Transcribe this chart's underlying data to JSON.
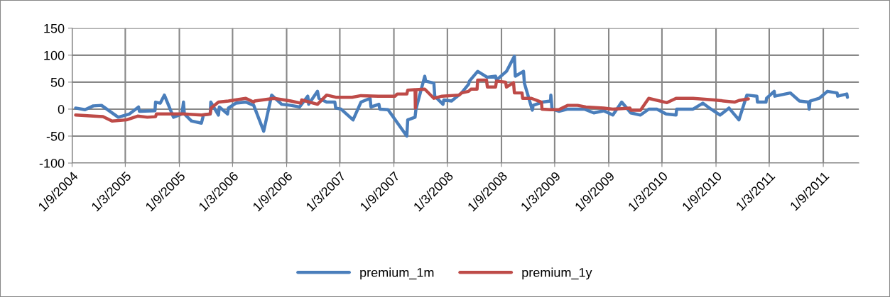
{
  "chart_data": {
    "type": "line",
    "xlim": [
      "2004-09-01",
      "2011-12-31"
    ],
    "xticks": [
      {
        "value": "2004-09-01",
        "label": "1/9/2004"
      },
      {
        "value": "2005-03-01",
        "label": "1/3/2005"
      },
      {
        "value": "2005-09-01",
        "label": "1/9/2005"
      },
      {
        "value": "2006-03-01",
        "label": "1/3/2006"
      },
      {
        "value": "2006-09-01",
        "label": "1/9/2006"
      },
      {
        "value": "2007-03-01",
        "label": "1/3/2007"
      },
      {
        "value": "2007-09-01",
        "label": "1/9/2007"
      },
      {
        "value": "2008-03-01",
        "label": "1/3/2008"
      },
      {
        "value": "2008-09-01",
        "label": "1/9/2008"
      },
      {
        "value": "2009-03-01",
        "label": "1/3/2009"
      },
      {
        "value": "2009-09-01",
        "label": "1/9/2009"
      },
      {
        "value": "2010-03-01",
        "label": "1/3/2010"
      },
      {
        "value": "2010-09-01",
        "label": "1/9/2010"
      },
      {
        "value": "2011-03-01",
        "label": "1/3/2011"
      },
      {
        "value": "2011-09-01",
        "label": "1/9/2011"
      }
    ],
    "ylim": [
      -100,
      150
    ],
    "yticks": [
      -100,
      -50,
      0,
      50,
      100,
      150
    ],
    "grid": true,
    "legend": "bottom",
    "series": [
      {
        "name": "premium_1m",
        "color": "#4a7ebb",
        "x": [
          "2004-09-13",
          "2004-10-15",
          "2004-11-12",
          "2004-12-10",
          "2005-02-05",
          "2005-03-15",
          "2005-04-15",
          "2005-04-18",
          "2005-06-10",
          "2005-06-12",
          "2005-06-28",
          "2005-07-12",
          "2005-08-12",
          "2005-09-10",
          "2005-09-15",
          "2005-09-18",
          "2005-10-12",
          "2005-11-15",
          "2005-11-22",
          "2005-12-15",
          "2005-12-17",
          "2006-01-12",
          "2006-01-15",
          "2006-02-12",
          "2006-02-15",
          "2006-03-12",
          "2006-04-15",
          "2006-05-12",
          "2006-06-15",
          "2006-07-12",
          "2006-08-15",
          "2006-09-15",
          "2006-10-15",
          "2006-11-12",
          "2006-11-15",
          "2006-12-15",
          "2006-12-20",
          "2007-01-15",
          "2007-01-20",
          "2007-02-12",
          "2007-02-15",
          "2007-03-05",
          "2007-04-15",
          "2007-05-12",
          "2007-06-12",
          "2007-06-15",
          "2007-07-12",
          "2007-07-15",
          "2007-08-12",
          "2007-10-15",
          "2007-10-18",
          "2007-11-12",
          "2007-11-15",
          "2007-12-15",
          "2007-12-18",
          "2008-01-15",
          "2008-01-18",
          "2008-02-15",
          "2008-02-18",
          "2008-03-15",
          "2008-04-18",
          "2008-05-12",
          "2008-05-15",
          "2008-06-12",
          "2008-07-15",
          "2008-08-12",
          "2008-08-15",
          "2008-09-18",
          "2008-10-15",
          "2008-10-18",
          "2008-11-15",
          "2008-11-18",
          "2008-12-15",
          "2008-12-18",
          "2009-01-18",
          "2009-02-15",
          "2009-02-16",
          "2009-02-20",
          "2009-03-15",
          "2009-04-15",
          "2009-06-10",
          "2009-07-12",
          "2009-08-15",
          "2009-09-15",
          "2009-10-15",
          "2009-11-15",
          "2009-12-18",
          "2010-01-15",
          "2010-02-12",
          "2010-03-15",
          "2010-04-18",
          "2010-04-20",
          "2010-06-15",
          "2010-07-18",
          "2010-08-15",
          "2010-09-15",
          "2010-10-15",
          "2010-11-18",
          "2010-12-15",
          "2011-01-18",
          "2011-01-20",
          "2011-02-18",
          "2011-02-20",
          "2011-03-18",
          "2011-03-20",
          "2011-05-12",
          "2011-06-12",
          "2011-07-12",
          "2011-07-15",
          "2011-07-18",
          "2011-08-18",
          "2011-09-15",
          "2011-10-18",
          "2011-10-20",
          "2011-11-20",
          "2011-11-22"
        ],
        "values": [
          2,
          -1,
          6,
          7,
          -15,
          -9,
          4,
          -4,
          -3,
          13,
          11,
          26,
          -15,
          -9,
          13,
          -9,
          -22,
          -26,
          -11,
          -9,
          13,
          -11,
          4,
          -9,
          2,
          11,
          13,
          7,
          -41,
          26,
          9,
          7,
          4,
          24,
          9,
          33,
          20,
          13,
          13,
          13,
          2,
          0,
          -20,
          13,
          20,
          4,
          9,
          0,
          -1,
          -50,
          -20,
          -15,
          0,
          61,
          52,
          48,
          24,
          9,
          17,
          15,
          30,
          46,
          52,
          70,
          59,
          61,
          54,
          70,
          98,
          61,
          70,
          48,
          -2,
          7,
          13,
          15,
          26,
          0,
          -4,
          0,
          0,
          -7,
          -3,
          -11,
          13,
          -7,
          -11,
          0,
          0,
          -9,
          -11,
          0,
          0,
          11,
          0,
          -11,
          2,
          -20,
          26,
          24,
          13,
          13,
          20,
          33,
          24,
          30,
          15,
          13,
          0,
          15,
          20,
          33,
          30,
          24,
          28,
          22
        ]
      },
      {
        "name": "premium_1y",
        "color": "#be4b48",
        "x": [
          "2004-09-13",
          "2004-11-12",
          "2004-12-15",
          "2005-01-15",
          "2005-03-05",
          "2005-04-12",
          "2005-05-15",
          "2005-06-12",
          "2005-06-15",
          "2005-08-15",
          "2005-09-15",
          "2005-11-15",
          "2005-12-15",
          "2005-12-18",
          "2006-01-12",
          "2006-02-15",
          "2006-04-15",
          "2006-05-12",
          "2006-05-15",
          "2006-07-20",
          "2006-09-15",
          "2006-10-20",
          "2006-10-22",
          "2006-12-15",
          "2007-01-15",
          "2007-02-15",
          "2007-04-12",
          "2007-05-12",
          "2007-07-10",
          "2007-09-05",
          "2007-09-12",
          "2007-10-15",
          "2007-10-18",
          "2007-11-12",
          "2007-11-13",
          "2007-11-15",
          "2007-12-15",
          "2008-01-15",
          "2008-02-12",
          "2008-04-10",
          "2008-04-18",
          "2008-05-12",
          "2008-05-20",
          "2008-06-10",
          "2008-06-12",
          "2008-07-12",
          "2008-07-15",
          "2008-08-12",
          "2008-08-15",
          "2008-09-15",
          "2008-09-18",
          "2008-10-12",
          "2008-10-15",
          "2008-11-10",
          "2008-11-12",
          "2008-12-12",
          "2009-01-15",
          "2009-01-17",
          "2009-02-15",
          "2009-03-15",
          "2009-04-15",
          "2009-05-18",
          "2009-06-15",
          "2009-08-15",
          "2009-09-15",
          "2009-11-12",
          "2009-11-15",
          "2009-12-18",
          "2010-01-15",
          "2010-03-18",
          "2010-04-18",
          "2010-06-15",
          "2010-08-25",
          "2010-11-03",
          "2010-11-18",
          "2010-12-20"
        ],
        "values": [
          -11,
          -13,
          -14,
          -22,
          -20,
          -13,
          -15,
          -14,
          -9,
          -9,
          -9,
          -11,
          -9,
          2,
          13,
          15,
          20,
          13,
          15,
          20,
          15,
          11,
          17,
          9,
          26,
          22,
          22,
          25,
          24,
          24,
          28,
          28,
          35,
          36,
          2,
          36,
          37,
          20,
          24,
          26,
          30,
          33,
          37,
          37,
          54,
          54,
          41,
          41,
          52,
          50,
          41,
          49,
          30,
          30,
          20,
          20,
          13,
          0,
          -1,
          -1,
          7,
          7,
          4,
          2,
          0,
          2,
          -2,
          -2,
          20,
          12,
          20,
          20,
          17,
          13,
          16,
          19
        ]
      }
    ]
  }
}
